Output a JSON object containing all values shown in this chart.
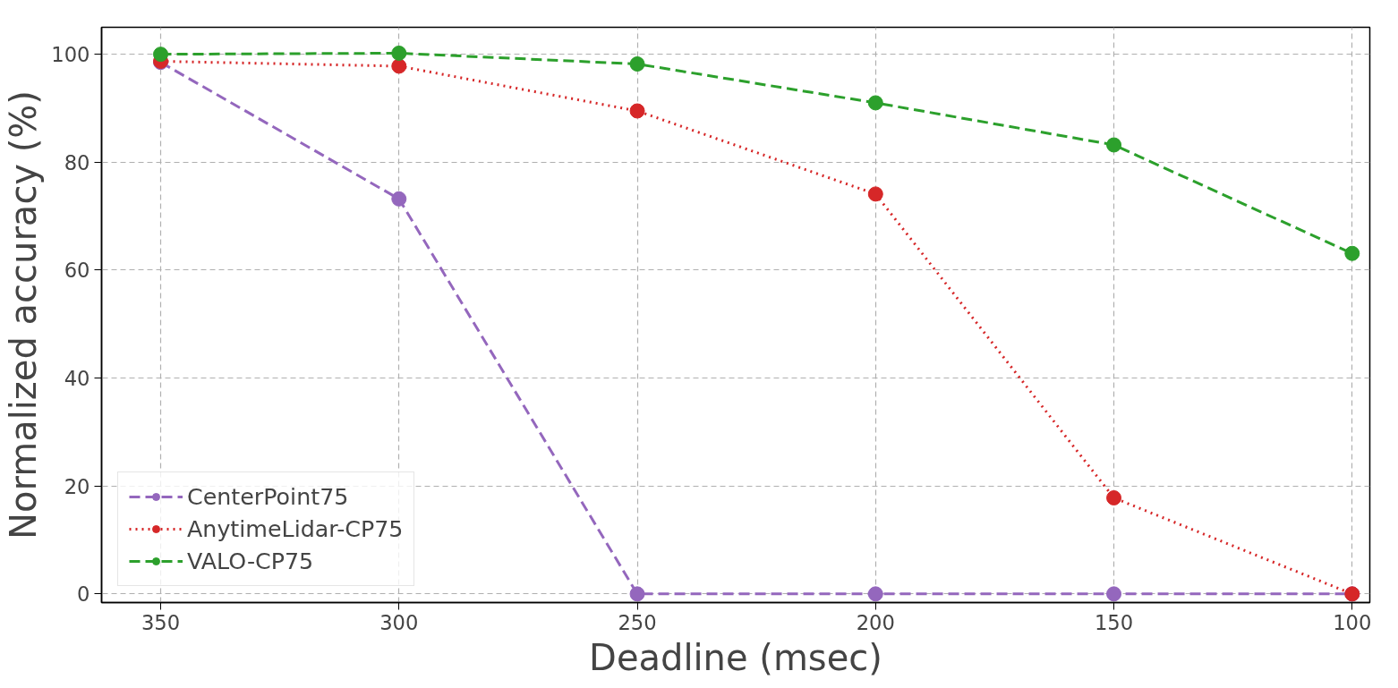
{
  "chart_data": {
    "type": "line",
    "xlabel": "Deadline (msec)",
    "ylabel": "Normalized accuracy (%)",
    "x": [
      350,
      300,
      250,
      200,
      150,
      100
    ],
    "series": [
      {
        "name": "CenterPoint75",
        "color": "#9467bd",
        "line_style": "dashed",
        "values": [
          98.5,
          73.2,
          0,
          0,
          0,
          0
        ]
      },
      {
        "name": "AnytimeLidar-CP75",
        "color": "#d62728",
        "line_style": "dotted",
        "values": [
          98.7,
          97.8,
          89.5,
          74.1,
          17.8,
          0
        ]
      },
      {
        "name": "VALO-CP75",
        "color": "#2ca02c",
        "line_style": "dashed",
        "values": [
          100,
          100.2,
          98.2,
          91,
          83.2,
          63.1
        ]
      }
    ],
    "xlim": [
      362.4,
      96.3
    ],
    "ylim": [
      -1.6,
      105
    ],
    "xticks": [
      350,
      300,
      250,
      200,
      150,
      100
    ],
    "yticks": [
      0,
      20,
      40,
      60,
      80,
      100
    ],
    "grid": true,
    "legend": "bottom left",
    "marker": "circle"
  }
}
